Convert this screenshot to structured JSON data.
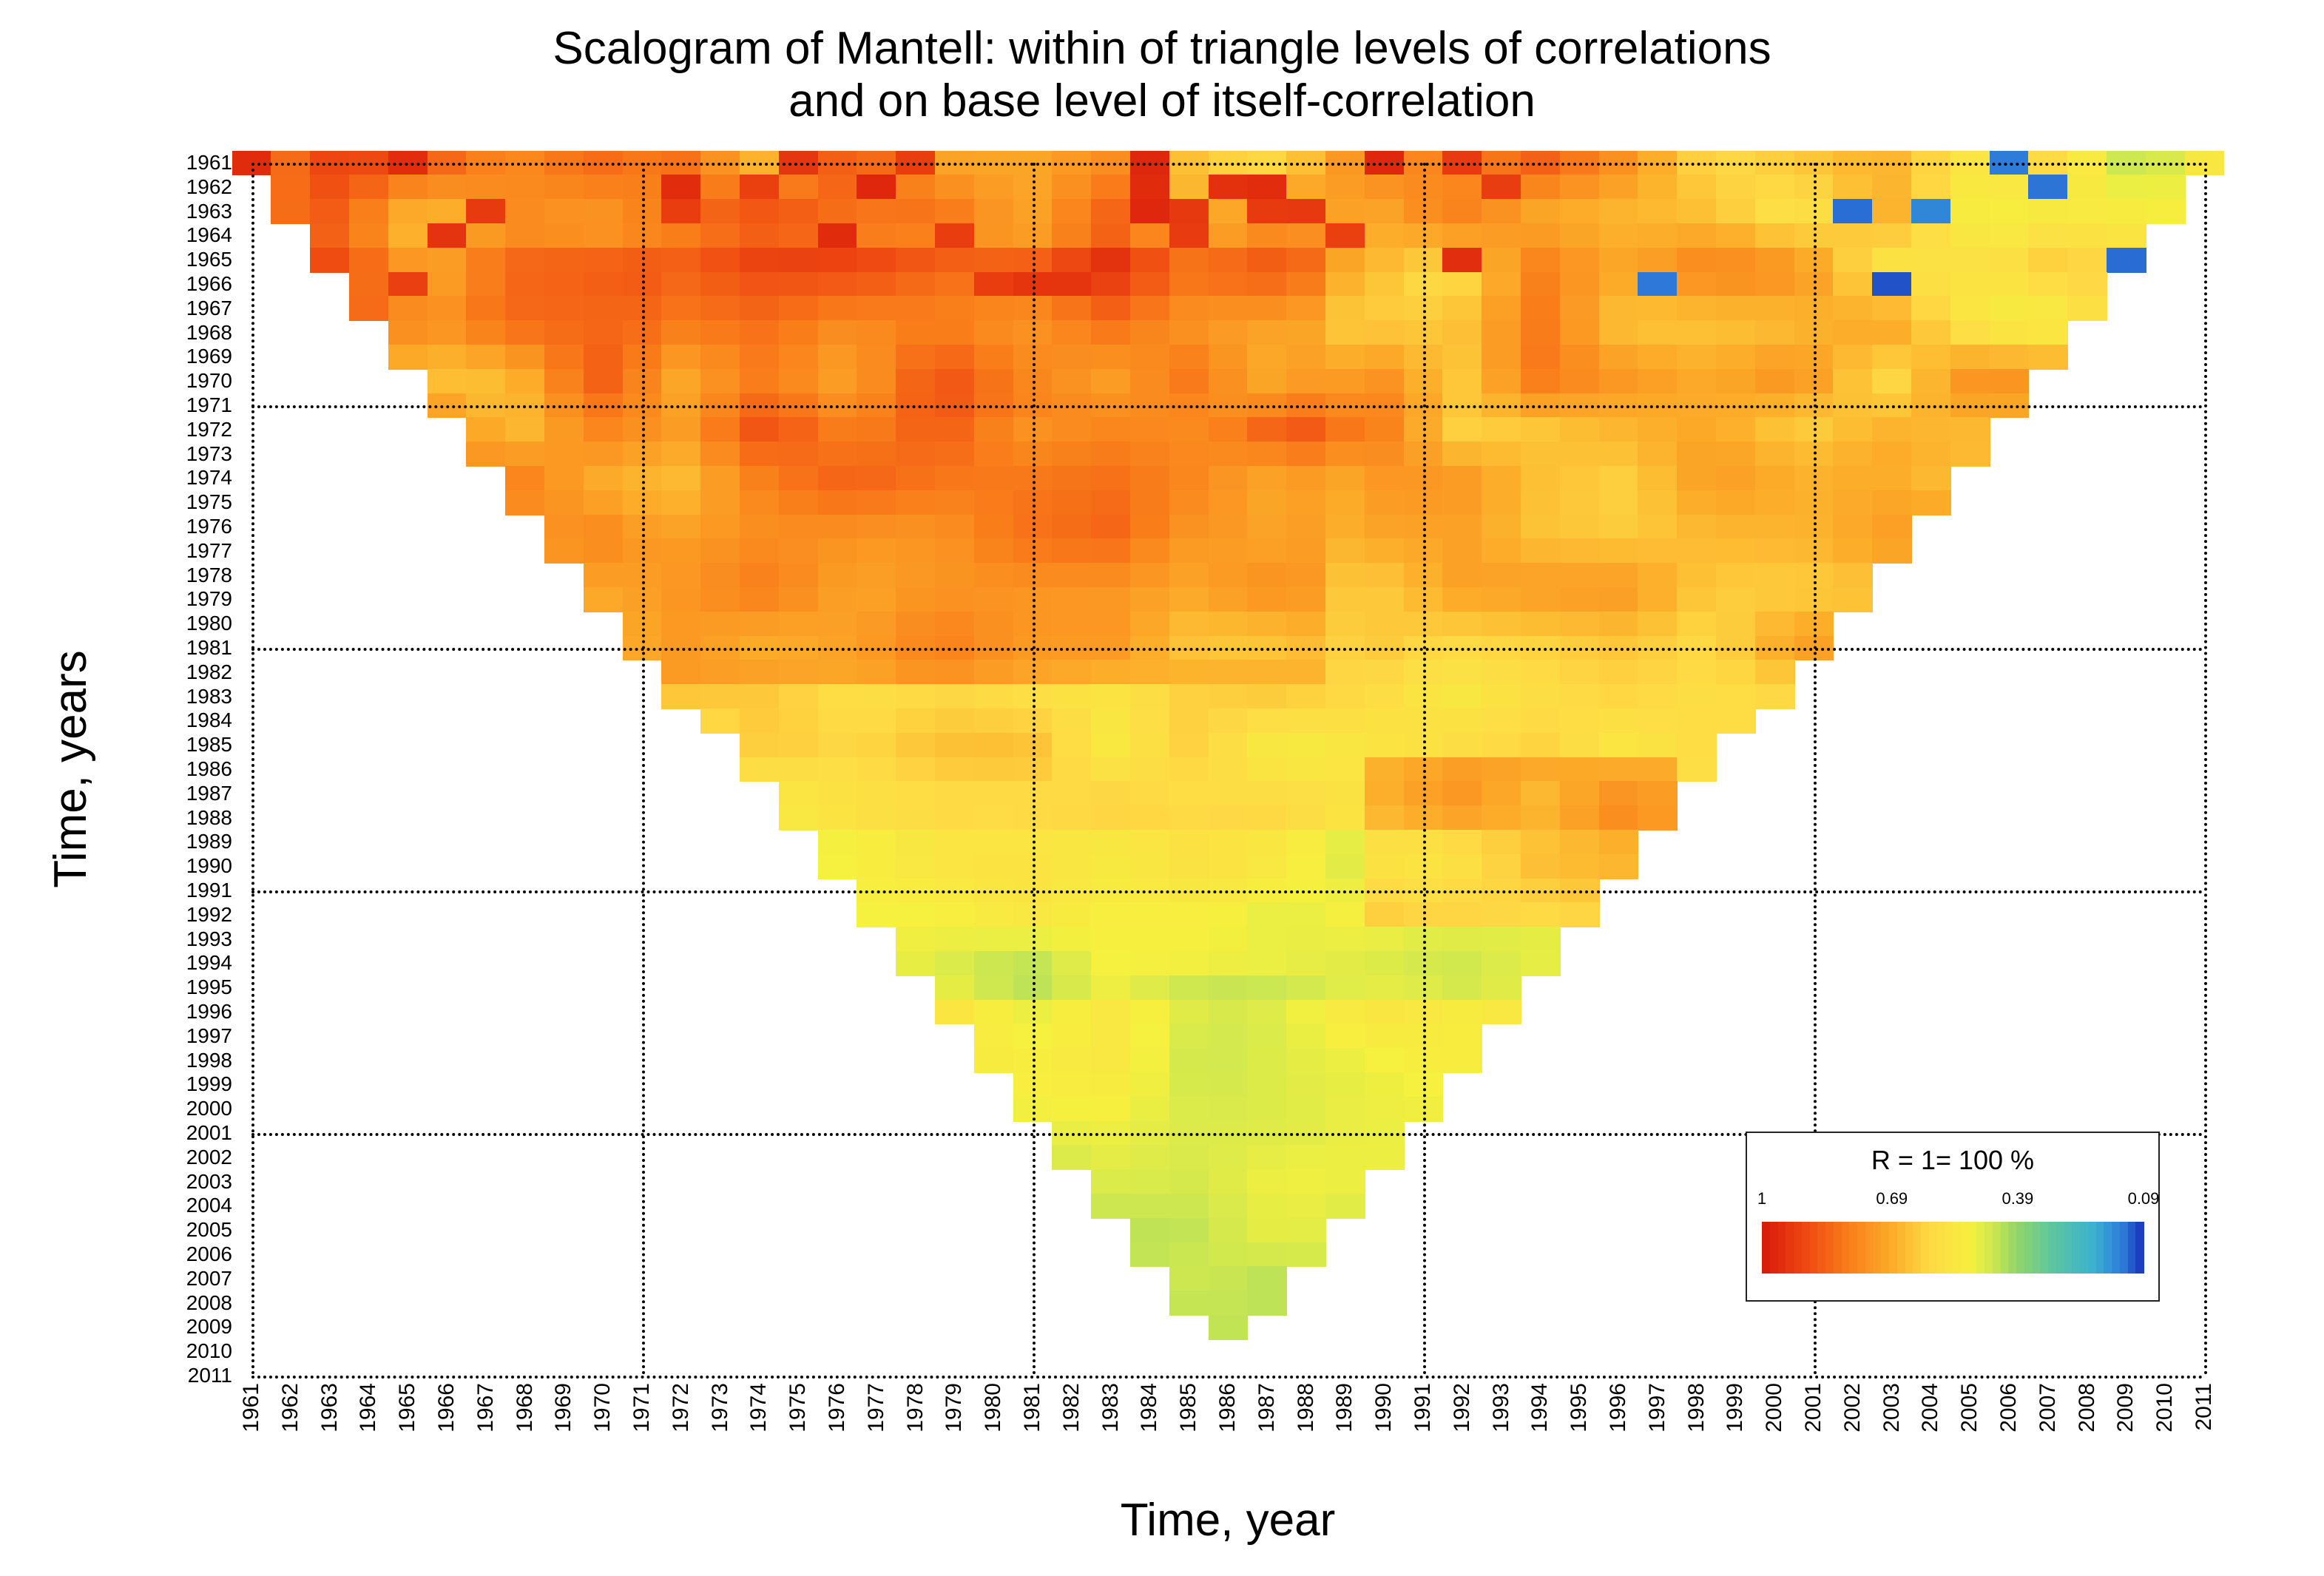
{
  "title_line1": "Scalogram of  Mantell: within of triangle levels of correlations",
  "title_line2": "and on base level of  itself-correlation",
  "y_axis_label": "Time, years",
  "x_axis_label": "Time, year",
  "background_color": "#ffffff",
  "grid_color": "#000000",
  "title_fontsize": 62,
  "axis_label_fontsize": 62,
  "tick_fontsize": 28,
  "scalogram": {
    "type": "heatmap-triangular",
    "year_min": 1961,
    "year_max": 2011,
    "y_years": [
      1961,
      1962,
      1963,
      1964,
      1965,
      1966,
      1967,
      1968,
      1969,
      1970,
      1971,
      1972,
      1973,
      1974,
      1975,
      1976,
      1977,
      1978,
      1979,
      1980,
      1981,
      1982,
      1983,
      1984,
      1985,
      1986,
      1987,
      1988,
      1989,
      1990,
      1991,
      1992,
      1993,
      1994,
      1995,
      1996,
      1997,
      1998,
      1999,
      2000,
      2001,
      2002,
      2003,
      2004,
      2005,
      2006,
      2007,
      2008,
      2009,
      2010,
      2011
    ],
    "x_years": [
      1961,
      1962,
      1963,
      1964,
      1965,
      1966,
      1967,
      1968,
      1969,
      1970,
      1971,
      1972,
      1973,
      1974,
      1975,
      1976,
      1977,
      1978,
      1979,
      1980,
      1981,
      1982,
      1983,
      1984,
      1985,
      1986,
      1987,
      1988,
      1989,
      1990,
      1991,
      1992,
      1993,
      1994,
      1995,
      1996,
      1997,
      1998,
      1999,
      2000,
      2001,
      2002,
      2003,
      2004,
      2005,
      2006,
      2007,
      2008,
      2009,
      2010,
      2011
    ],
    "grid_h_years": [
      1961,
      1971,
      1981,
      1991,
      2001,
      2011
    ],
    "grid_v_years": [
      1961,
      1971,
      1981,
      1991,
      2001,
      2011
    ],
    "apex": {
      "x_year": 1986,
      "y_year": 2009
    },
    "palette": {
      "stops": [
        {
          "v": 1.0,
          "color": "#d91d0b"
        },
        {
          "v": 0.9,
          "color": "#ef4a12"
        },
        {
          "v": 0.8,
          "color": "#f97d1a"
        },
        {
          "v": 0.69,
          "color": "#fcae2a"
        },
        {
          "v": 0.6,
          "color": "#feda45"
        },
        {
          "v": 0.5,
          "color": "#f6f03e"
        },
        {
          "v": 0.45,
          "color": "#cfe84f"
        },
        {
          "v": 0.39,
          "color": "#93d56a"
        },
        {
          "v": 0.3,
          "color": "#5cc6a0"
        },
        {
          "v": 0.2,
          "color": "#3ab1d1"
        },
        {
          "v": 0.13,
          "color": "#2d79d9"
        },
        {
          "v": 0.09,
          "color": "#1b3fbe"
        }
      ]
    },
    "legend": {
      "title": "R  = 1= 100 %",
      "ticks": [
        1,
        0.69,
        0.39,
        0.09
      ]
    }
  }
}
